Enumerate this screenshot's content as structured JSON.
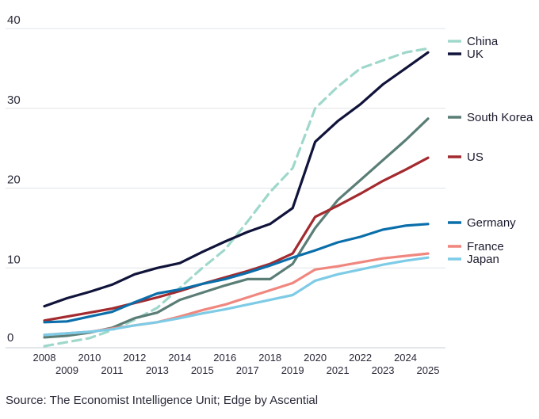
{
  "chart_data": {
    "type": "line",
    "title": "",
    "xlabel": "",
    "ylabel": "",
    "ylim": [
      0,
      40
    ],
    "yticks": [
      0,
      10,
      20,
      30,
      40
    ],
    "xlim": [
      2008,
      2025
    ],
    "x": [
      2008,
      2009,
      2010,
      2011,
      2012,
      2013,
      2014,
      2015,
      2016,
      2017,
      2018,
      2019,
      2020,
      2021,
      2022,
      2023,
      2024,
      2025
    ],
    "xtick_labels": [
      "2008",
      "2009",
      "2010",
      "2011",
      "2012",
      "2013",
      "2014",
      "2015",
      "2016",
      "2017",
      "2018",
      "2019",
      "2020",
      "2021",
      "2022",
      "2023",
      "2024",
      "2025"
    ],
    "grid": "horizontal",
    "legend": "right, at line ends",
    "series": [
      {
        "name": "China",
        "color": "#9fd8cb",
        "dashed": true,
        "values": [
          0.2,
          0.7,
          1.2,
          2.2,
          3.5,
          5.0,
          7.5,
          10.0,
          12.3,
          15.8,
          19.5,
          22.5,
          30.0,
          32.7,
          35.0,
          36.0,
          37.0,
          37.5
        ]
      },
      {
        "name": "UK",
        "color": "#10133a",
        "dashed": false,
        "values": [
          5.2,
          6.2,
          7.0,
          7.9,
          9.2,
          10.0,
          10.6,
          12.0,
          13.3,
          14.5,
          15.5,
          17.5,
          25.8,
          28.4,
          30.5,
          33.0,
          35.0,
          37.0
        ]
      },
      {
        "name": "South Korea",
        "color": "#5a7d76",
        "dashed": false,
        "values": [
          1.3,
          1.5,
          1.9,
          2.5,
          3.7,
          4.4,
          6.0,
          6.9,
          7.8,
          8.6,
          8.6,
          10.5,
          15.0,
          18.5,
          21.0,
          23.5,
          26.0,
          28.7
        ]
      },
      {
        "name": "US",
        "color": "#a32a2e",
        "dashed": false,
        "values": [
          3.4,
          3.9,
          4.4,
          4.9,
          5.6,
          6.3,
          7.1,
          8.0,
          8.8,
          9.6,
          10.5,
          11.8,
          16.4,
          17.8,
          19.3,
          20.9,
          22.3,
          23.8
        ]
      },
      {
        "name": "Germany",
        "color": "#0a6eaa",
        "dashed": false,
        "values": [
          3.2,
          3.3,
          3.9,
          4.5,
          5.7,
          6.8,
          7.3,
          8.0,
          8.6,
          9.4,
          10.3,
          11.3,
          12.2,
          13.2,
          13.9,
          14.8,
          15.3,
          15.5
        ]
      },
      {
        "name": "France",
        "color": "#f0877f",
        "dashed": false,
        "values": [
          1.6,
          1.8,
          2.0,
          2.4,
          2.8,
          3.2,
          3.9,
          4.7,
          5.4,
          6.3,
          7.2,
          8.1,
          9.8,
          10.2,
          10.7,
          11.2,
          11.5,
          11.8
        ]
      },
      {
        "name": "Japan",
        "color": "#7ecbe6",
        "dashed": false,
        "values": [
          1.6,
          1.8,
          2.0,
          2.3,
          2.8,
          3.2,
          3.7,
          4.3,
          4.8,
          5.4,
          6.0,
          6.6,
          8.4,
          9.2,
          9.8,
          10.4,
          10.9,
          11.3
        ]
      }
    ]
  },
  "source": "Source: The Economist Intelligence Unit; Edge by Ascential"
}
